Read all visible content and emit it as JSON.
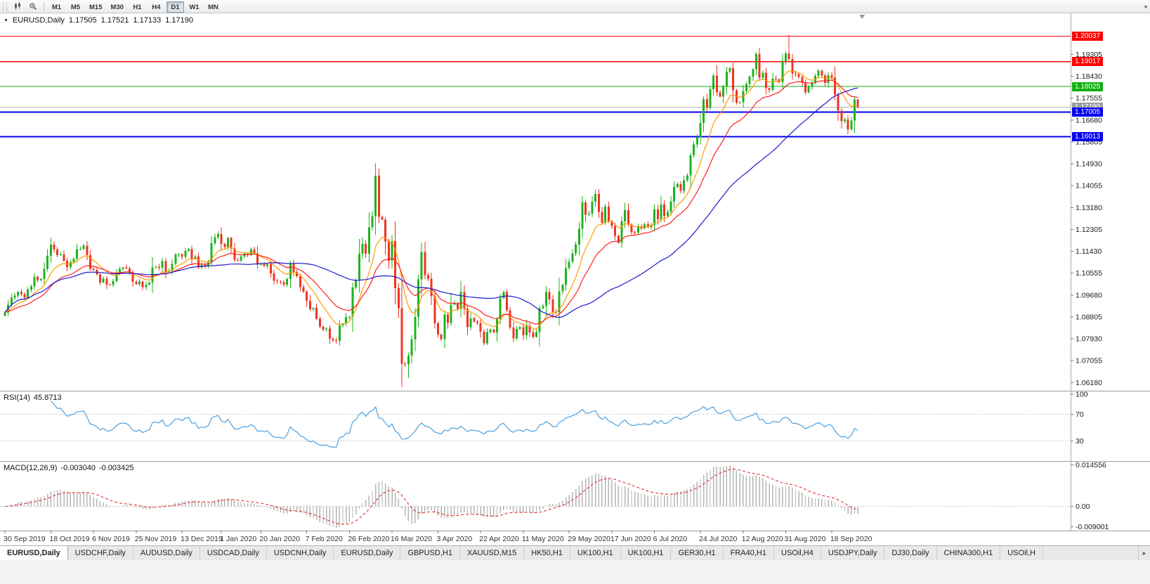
{
  "toolbar": {
    "timeframes": [
      "M1",
      "M5",
      "M15",
      "M30",
      "H1",
      "H4",
      "D1",
      "W1",
      "MN"
    ],
    "active": "D1",
    "overflow_icon": "▸",
    "icons": [
      "candlestick-chart-icon",
      "zoom-in-icon"
    ]
  },
  "chart_header": {
    "expander": "▼",
    "title": "EURUSD,Daily",
    "open": "1.17505",
    "high": "1.17521",
    "low": "1.17133",
    "close": "1.17190"
  },
  "rsi_header": {
    "label": "RSI(14)",
    "value": "45.8713"
  },
  "macd_header": {
    "label": "MACD(12,26,9)",
    "value_macd": "-0.003040",
    "value_signal": "-0.003425"
  },
  "tabs": {
    "items": [
      "EURUSD,Daily",
      "USDCHF,Daily",
      "AUDUSD,Daily",
      "USDCAD,Daily",
      "USDCNH,Daily",
      "EURUSD,Daily",
      "GBPUSD,H1",
      "XAUUSD,M15",
      "HK50,H1",
      "UK100,H1",
      "UK100,H1",
      "GER30,H1",
      "FRA40,H1",
      "USOil,H4",
      "USDJPY,Daily",
      "DJ30,Daily",
      "CHINA300,H1",
      "USOil,H"
    ],
    "active_index": 0,
    "scroll_icon": "▸"
  },
  "chart_data": {
    "type": "candlestick",
    "symbol": "EURUSD",
    "timeframe": "Daily",
    "y_axis": {
      "first_tick": 1.19305,
      "tick_step": 0.00875,
      "tick_count": 16,
      "view_max": 1.2095,
      "view_min": 1.0585
    },
    "x_axis": {
      "labels": [
        {
          "i": 0,
          "t": "30 Sep 2019"
        },
        {
          "i": 14,
          "t": "18 Oct 2019"
        },
        {
          "i": 27,
          "t": "6 Nov 2019"
        },
        {
          "i": 40,
          "t": "25 Nov 2019"
        },
        {
          "i": 54,
          "t": "13 Dec 2019"
        },
        {
          "i": 66,
          "t": "1 Jan 2020"
        },
        {
          "i": 78,
          "t": "20 Jan 2020"
        },
        {
          "i": 92,
          "t": "7 Feb 2020"
        },
        {
          "i": 105,
          "t": "26 Feb 2020"
        },
        {
          "i": 118,
          "t": "16 Mar 2020"
        },
        {
          "i": 132,
          "t": "3 Apr 2020"
        },
        {
          "i": 145,
          "t": "22 Apr 2020"
        },
        {
          "i": 158,
          "t": "11 May 2020"
        },
        {
          "i": 172,
          "t": "29 May 2020"
        },
        {
          "i": 185,
          "t": "17 Jun 2020"
        },
        {
          "i": 198,
          "t": "6 Jul 2020"
        },
        {
          "i": 212,
          "t": "24 Jul 2020"
        },
        {
          "i": 225,
          "t": "12 Aug 2020"
        },
        {
          "i": 238,
          "t": "31 Aug 2020"
        },
        {
          "i": 252,
          "t": "18 Sep 2020"
        }
      ]
    },
    "first_open": 1.0885,
    "closes": [
      1.0899,
      1.093,
      1.0958,
      1.0966,
      1.098,
      1.0972,
      1.0958,
      1.099,
      1.1003,
      1.104,
      1.1028,
      1.1032,
      1.1073,
      1.1125,
      1.117,
      1.115,
      1.1127,
      1.1131,
      1.1105,
      1.108,
      1.11,
      1.1113,
      1.1152,
      1.1152,
      1.1165,
      1.1127,
      1.1073,
      1.1068,
      1.105,
      1.1018,
      1.1034,
      1.1009,
      1.1008,
      1.1023,
      1.1052,
      1.1073,
      1.1078,
      1.1074,
      1.1058,
      1.1021,
      1.1011,
      1.1022,
      1.1,
      1.1009,
      1.1018,
      1.1078,
      1.1082,
      1.1077,
      1.1104,
      1.106,
      1.1064,
      1.1093,
      1.113,
      1.113,
      1.112,
      1.1145,
      1.1152,
      1.1113,
      1.1122,
      1.1078,
      1.1088,
      1.1086,
      1.1098,
      1.1176,
      1.1199,
      1.1212,
      1.1172,
      1.116,
      1.1196,
      1.1154,
      1.1108,
      1.1107,
      1.1122,
      1.1134,
      1.1128,
      1.115,
      1.1135,
      1.109,
      1.1095,
      1.1084,
      1.1092,
      1.1054,
      1.1025,
      1.1022,
      1.102,
      1.101,
      1.1032,
      1.1093,
      1.106,
      1.1043,
      1.1,
      1.0981,
      1.0945,
      1.0911,
      1.0917,
      1.0873,
      1.0841,
      1.083,
      1.0834,
      1.0793,
      1.0788,
      1.0785,
      1.0846,
      1.0853,
      1.088,
      1.0881,
      1.0999,
      1.1026,
      1.1134,
      1.1173,
      1.1134,
      1.1239,
      1.1284,
      1.1445,
      1.1281,
      1.127,
      1.1183,
      1.1105,
      1.1184,
      1.0995,
      1.0915,
      1.0693,
      1.069,
      1.0725,
      1.079,
      1.088,
      1.103,
      1.114,
      1.1048,
      1.1033,
      1.0963,
      1.0855,
      1.081,
      1.0791,
      1.089,
      1.0856,
      1.093,
      1.0935,
      1.0913,
      1.098,
      1.0913,
      1.084,
      1.0875,
      1.0862,
      1.0857,
      1.0821,
      1.0775,
      1.082,
      1.0829,
      1.0818,
      1.0872,
      1.0955,
      1.098,
      1.0907,
      1.0838,
      1.0795,
      1.0832,
      1.084,
      1.0807,
      1.0845,
      1.0818,
      1.08,
      1.082,
      1.0915,
      1.0924,
      1.098,
      1.095,
      1.09,
      1.0898,
      1.0983,
      1.1008,
      1.1076,
      1.1101,
      1.1135,
      1.117,
      1.1233,
      1.1338,
      1.129,
      1.1294,
      1.1341,
      1.1373,
      1.13,
      1.1257,
      1.1322,
      1.1264,
      1.1245,
      1.1205,
      1.1177,
      1.1262,
      1.1308,
      1.125,
      1.1219,
      1.1218,
      1.1242,
      1.1235,
      1.1252,
      1.1239,
      1.1248,
      1.131,
      1.1271,
      1.133,
      1.1284,
      1.13,
      1.1343,
      1.1401,
      1.1412,
      1.1385,
      1.1427,
      1.1447,
      1.1527,
      1.1571,
      1.1598,
      1.1656,
      1.1752,
      1.1717,
      1.1791,
      1.1846,
      1.1778,
      1.1762,
      1.1803,
      1.1862,
      1.1876,
      1.1787,
      1.1738,
      1.1739,
      1.1784,
      1.1813,
      1.1842,
      1.1872,
      1.1932,
      1.1838,
      1.1858,
      1.1796,
      1.1788,
      1.1834,
      1.183,
      1.182,
      1.1903,
      1.1935,
      1.1912,
      1.1854,
      1.1852,
      1.184,
      1.1816,
      1.1778,
      1.1801,
      1.1816,
      1.1845,
      1.1866,
      1.1846,
      1.1816,
      1.1847,
      1.1838,
      1.177,
      1.1706,
      1.1663,
      1.167,
      1.1631,
      1.1666,
      1.175,
      1.1719
    ],
    "wick_overrides": [
      {
        "i": 113,
        "high": 1.1495
      },
      {
        "i": 123,
        "low": 1.0636
      },
      {
        "i": 239,
        "high": 1.2011
      },
      {
        "i": 257,
        "low": 1.1612
      },
      {
        "i": 260,
        "high": 1.17521,
        "low": 1.17133
      }
    ],
    "candle_colors": {
      "bull": "#1db31d",
      "bear": "#f03322"
    },
    "overlays": {
      "moving_averages": [
        {
          "period": 10,
          "method": "ema",
          "color": "#ff9c00"
        },
        {
          "period": 21,
          "method": "ema",
          "color": "#ff2020"
        },
        {
          "period": 50,
          "method": "sma",
          "color": "#1c1ccd"
        }
      ],
      "h_lines": [
        {
          "price": 1.20037,
          "label": "1.20037",
          "color": "#ff0000",
          "width": 1.4
        },
        {
          "price": 1.19017,
          "label": "1.19017",
          "color": "#ff0000",
          "width": 1.4
        },
        {
          "price": 1.18025,
          "label": "1.18025",
          "color": "#10b010",
          "width": 1.4
        },
        {
          "price": 1.17005,
          "label": "1.17005",
          "color": "#0000ee",
          "width": 2
        },
        {
          "price": 1.16013,
          "label": "1.16013",
          "color": "#0000ee",
          "width": 2
        }
      ],
      "bid_line": {
        "price": 1.1719,
        "label": "1.17190",
        "color": "#b3b3b3"
      }
    },
    "indicators": {
      "rsi": {
        "period": 14,
        "current": 45.8713,
        "color": "#4aa1e0",
        "levels": [
          70,
          30
        ],
        "axis_labels": [
          "100",
          "70",
          "30"
        ]
      },
      "macd": {
        "fast": 12,
        "slow": 26,
        "signal": 9,
        "current_macd": -0.00304,
        "current_signal": -0.003425,
        "hist_color": "#b4b4b4",
        "signal_color": "#e03131",
        "axis_top": "0.014556",
        "axis_zero": "0.00",
        "axis_bottom": "-0.009001"
      }
    }
  }
}
